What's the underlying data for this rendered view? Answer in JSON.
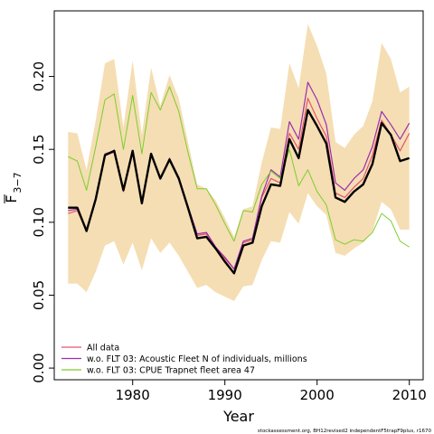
{
  "chart_data": {
    "type": "line",
    "xlabel": "Year",
    "ylabel": "F",
    "ylabel_sub": "3−7",
    "xlim": [
      1971.5,
      2011.5
    ],
    "ylim": [
      -0.008,
      0.245
    ],
    "x_ticks": [
      1980,
      1990,
      2000,
      2010
    ],
    "y_ticks": [
      0.0,
      0.05,
      0.1,
      0.15,
      0.2
    ],
    "y_tick_labels": [
      "0.00",
      "0.05",
      "0.10",
      "0.15",
      "0.20"
    ],
    "legend_position": "bottom-left",
    "caption": "stockassessment.org, BH12revised2 independentF5trapF9plus, r1670",
    "years": [
      1973,
      1974,
      1975,
      1976,
      1977,
      1978,
      1979,
      1980,
      1981,
      1982,
      1983,
      1984,
      1985,
      1986,
      1987,
      1988,
      1989,
      1990,
      1991,
      1992,
      1993,
      1994,
      1995,
      1996,
      1997,
      1998,
      1999,
      2000,
      2001,
      2002,
      2003,
      2004,
      2005,
      2006,
      2007,
      2008,
      2009,
      2010
    ],
    "band": {
      "color": "#F5DEB3",
      "upper": [
        0.162,
        0.161,
        0.136,
        0.17,
        0.209,
        0.212,
        0.165,
        0.211,
        0.16,
        0.206,
        0.18,
        0.201,
        0.185,
        0.155,
        0.126,
        0.123,
        0.115,
        0.103,
        0.09,
        0.109,
        0.111,
        0.141,
        0.165,
        0.164,
        0.209,
        0.192,
        0.236,
        0.221,
        0.202,
        0.155,
        0.151,
        0.16,
        0.166,
        0.183,
        0.223,
        0.212,
        0.189,
        0.193
      ],
      "lower": [
        0.058,
        0.058,
        0.052,
        0.066,
        0.084,
        0.087,
        0.071,
        0.086,
        0.067,
        0.089,
        0.079,
        0.086,
        0.077,
        0.066,
        0.055,
        0.057,
        0.052,
        0.049,
        0.046,
        0.056,
        0.057,
        0.074,
        0.087,
        0.086,
        0.107,
        0.099,
        0.12,
        0.111,
        0.105,
        0.079,
        0.077,
        0.082,
        0.086,
        0.094,
        0.114,
        0.109,
        0.095,
        0.095
      ]
    },
    "series": [
      {
        "name": "All data",
        "color": "#E8546D",
        "width": 1.2,
        "values": [
          0.106,
          0.108,
          0.094,
          0.115,
          0.146,
          0.148,
          0.121,
          0.148,
          0.113,
          0.146,
          0.13,
          0.143,
          0.13,
          0.11,
          0.091,
          0.092,
          0.083,
          0.075,
          0.068,
          0.086,
          0.088,
          0.117,
          0.13,
          0.127,
          0.161,
          0.15,
          0.185,
          0.171,
          0.159,
          0.12,
          0.117,
          0.124,
          0.13,
          0.146,
          0.17,
          0.16,
          0.149,
          0.161
        ]
      },
      {
        "name": "w.o. FLT 03: Acoustic Fleet  N of individuals, millions",
        "color": "#9B2FAE",
        "width": 1.2,
        "values": [
          0.108,
          0.109,
          0.094,
          0.116,
          0.147,
          0.149,
          0.122,
          0.149,
          0.113,
          0.147,
          0.13,
          0.144,
          0.131,
          0.111,
          0.092,
          0.093,
          0.083,
          0.076,
          0.068,
          0.087,
          0.089,
          0.118,
          0.136,
          0.131,
          0.169,
          0.157,
          0.196,
          0.184,
          0.167,
          0.127,
          0.122,
          0.13,
          0.136,
          0.152,
          0.176,
          0.167,
          0.157,
          0.168
        ]
      },
      {
        "name": "w.o. FLT 03: CPUE Trapnet fleet area 47",
        "color": "#7CCD2E",
        "width": 1.0,
        "values": [
          0.145,
          0.142,
          0.122,
          0.152,
          0.184,
          0.188,
          0.15,
          0.187,
          0.147,
          0.189,
          0.177,
          0.193,
          0.176,
          0.148,
          0.123,
          0.123,
          0.112,
          0.099,
          0.087,
          0.108,
          0.107,
          0.126,
          0.135,
          0.13,
          0.15,
          0.125,
          0.136,
          0.121,
          0.112,
          0.088,
          0.085,
          0.088,
          0.087,
          0.093,
          0.106,
          0.101,
          0.087,
          0.083
        ]
      },
      {
        "name": "",
        "color": "#000000",
        "width": 2.4,
        "values": [
          0.11,
          0.11,
          0.094,
          0.116,
          0.146,
          0.149,
          0.122,
          0.149,
          0.113,
          0.147,
          0.13,
          0.143,
          0.13,
          0.11,
          0.089,
          0.09,
          0.082,
          0.073,
          0.065,
          0.084,
          0.086,
          0.111,
          0.126,
          0.125,
          0.157,
          0.144,
          0.177,
          0.166,
          0.154,
          0.117,
          0.114,
          0.121,
          0.126,
          0.14,
          0.168,
          0.16,
          0.142,
          0.144
        ]
      }
    ]
  }
}
